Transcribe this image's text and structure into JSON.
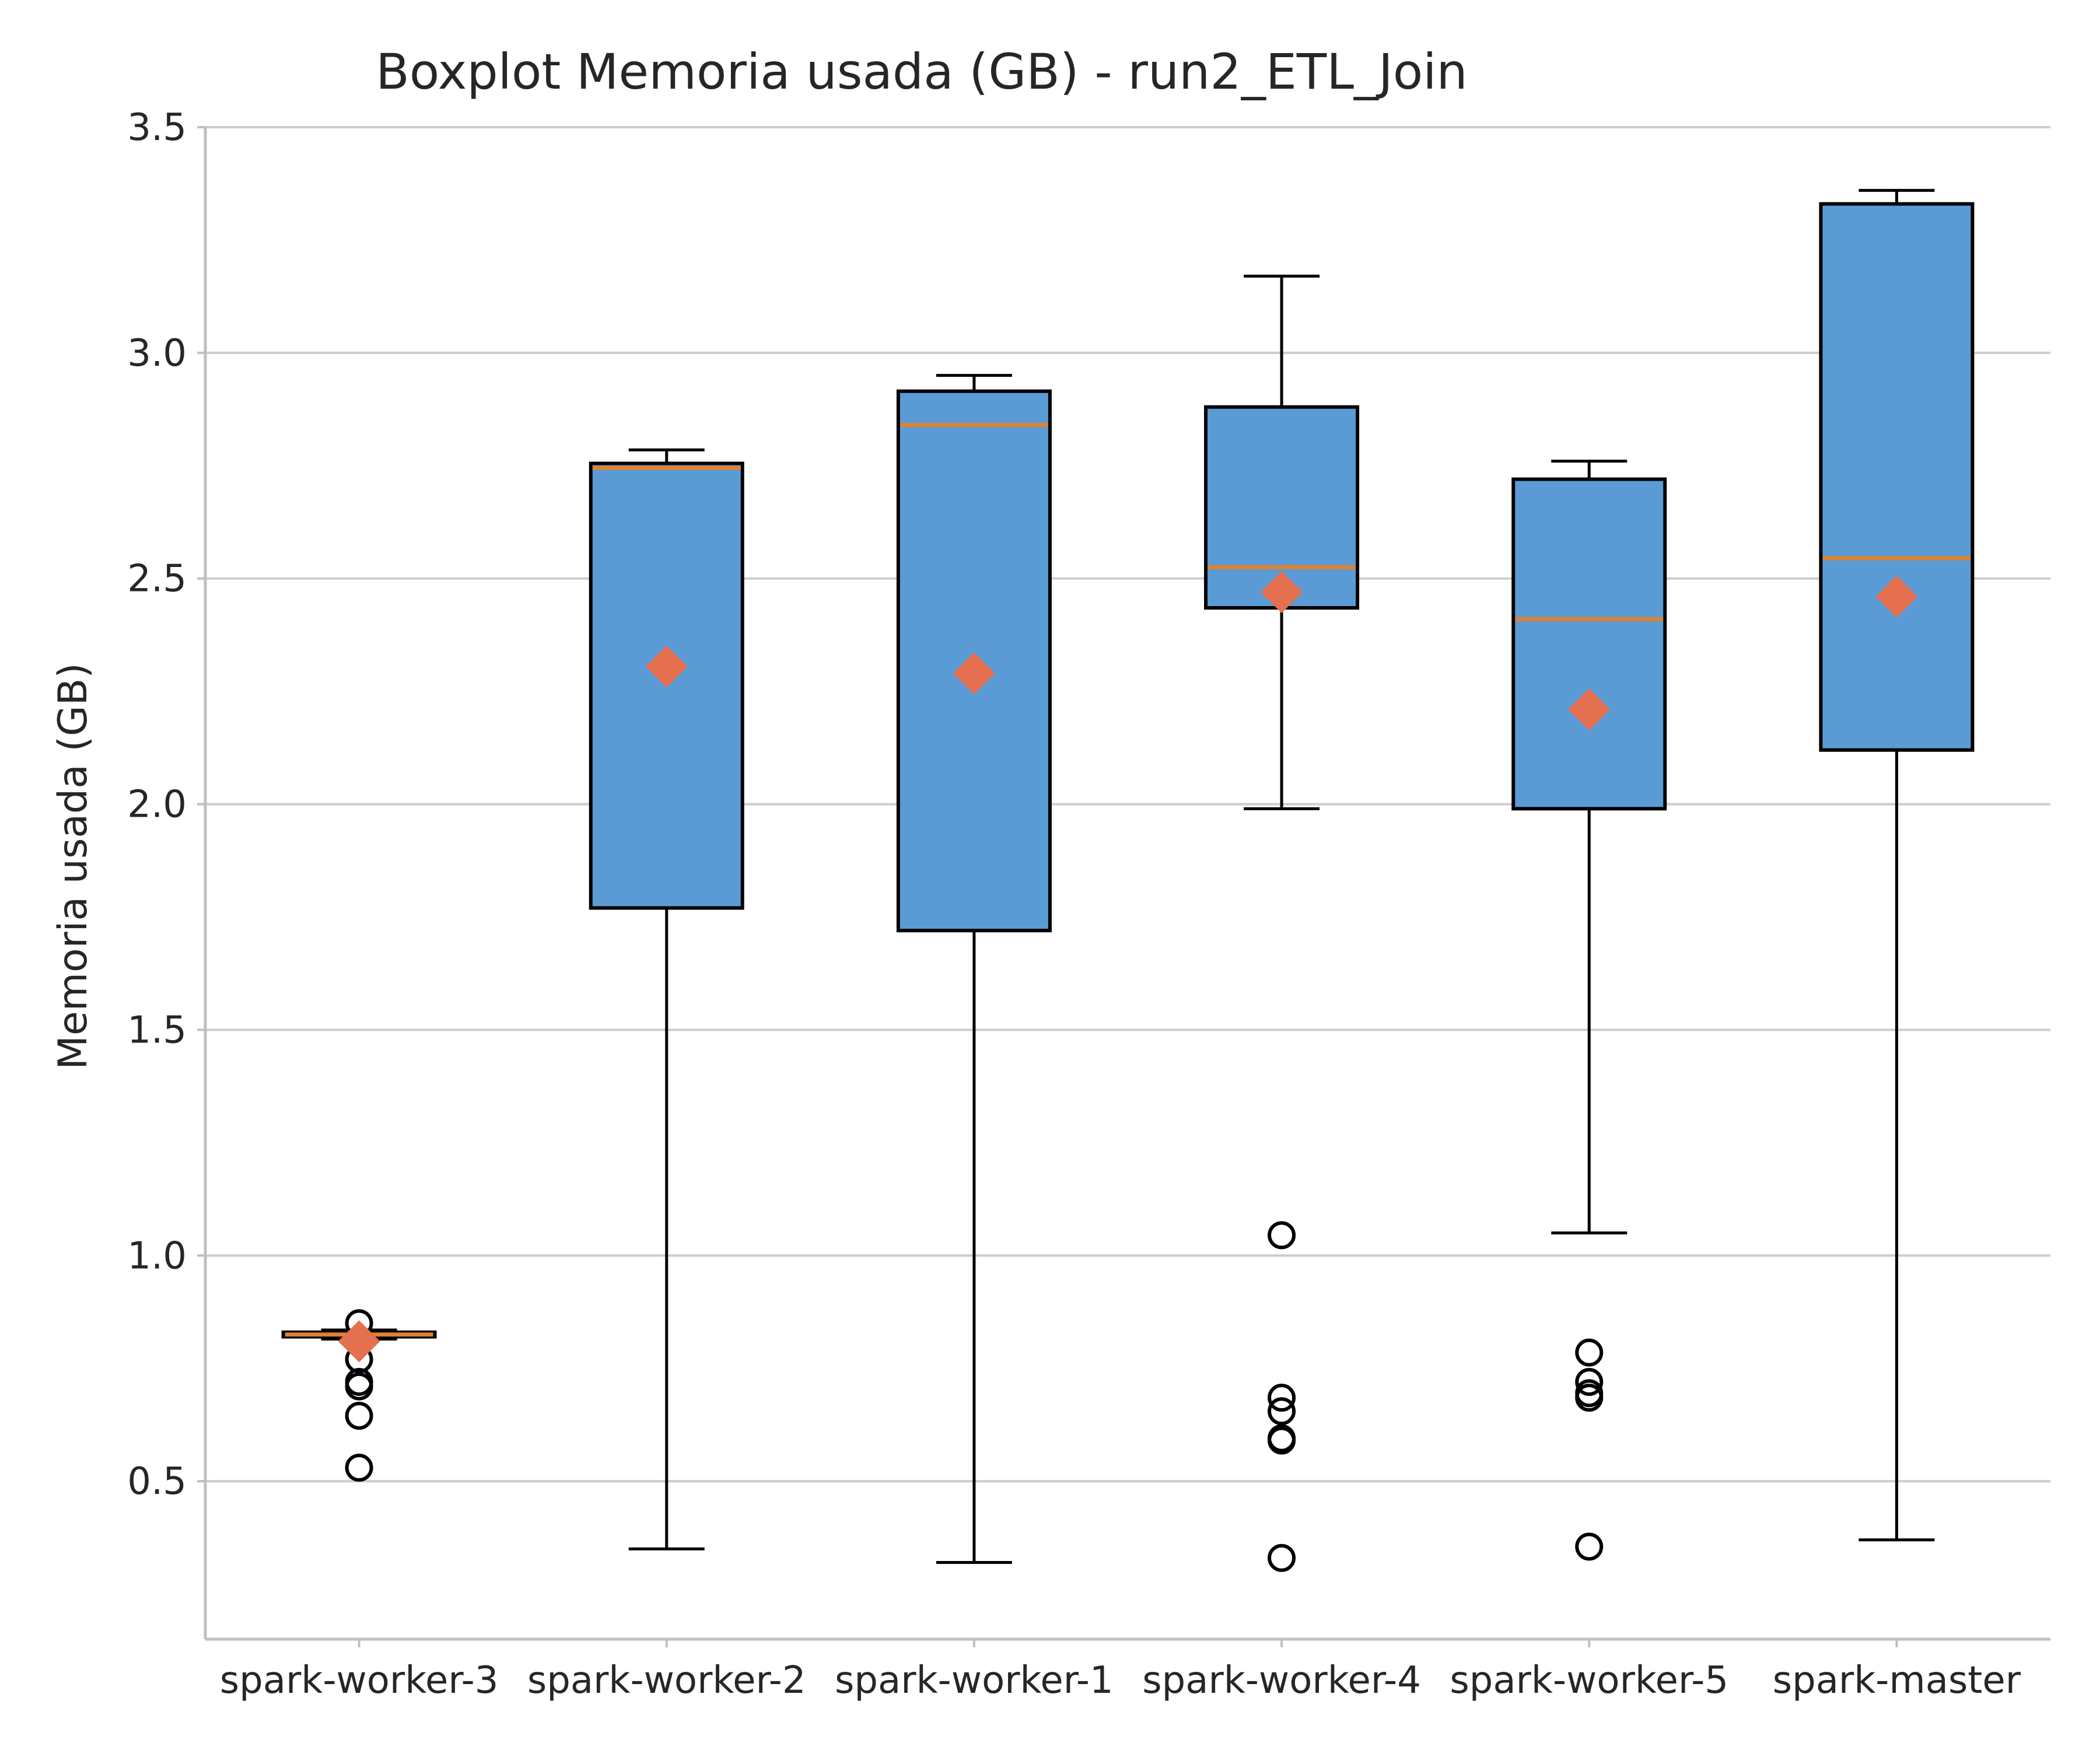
{
  "chart_data": {
    "type": "boxplot",
    "title": "Boxplot Memoria usada (GB) - run2_ETL_Join",
    "xlabel": "",
    "ylabel": "Memoria usada (GB)",
    "ylim": [
      0.15,
      3.5
    ],
    "yticks": [
      0.5,
      1.0,
      1.5,
      2.0,
      2.5,
      3.0,
      3.5
    ],
    "ytick_labels": [
      "0.5",
      "1.0",
      "1.5",
      "2.0",
      "2.5",
      "3.0",
      "3.5"
    ],
    "grid": "horizontal",
    "categories": [
      "spark-worker-3",
      "spark-worker-2",
      "spark-worker-1",
      "spark-worker-4",
      "spark-worker-5",
      "spark-master"
    ],
    "boxes": [
      {
        "whisker_low": 0.815,
        "q1": 0.82,
        "median": 0.825,
        "q3": 0.83,
        "whisker_high": 0.835,
        "mean": 0.81,
        "outliers": [
          0.85,
          0.77,
          0.72,
          0.71,
          0.645,
          0.53
        ]
      },
      {
        "whisker_low": 0.35,
        "q1": 1.77,
        "median": 2.745,
        "q3": 2.755,
        "whisker_high": 2.785,
        "mean": 2.305,
        "outliers": []
      },
      {
        "whisker_low": 0.32,
        "q1": 1.72,
        "median": 2.84,
        "q3": 2.915,
        "whisker_high": 2.95,
        "mean": 2.29,
        "outliers": []
      },
      {
        "whisker_low": 1.99,
        "q1": 2.435,
        "median": 2.525,
        "q3": 2.88,
        "whisker_high": 3.17,
        "mean": 2.47,
        "outliers": [
          1.045,
          0.685,
          0.655,
          0.595,
          0.59,
          0.33
        ]
      },
      {
        "whisker_low": 1.05,
        "q1": 1.99,
        "median": 2.41,
        "q3": 2.72,
        "whisker_high": 2.76,
        "mean": 2.21,
        "outliers": [
          0.785,
          0.72,
          0.695,
          0.685,
          0.355
        ]
      },
      {
        "whisker_low": 0.37,
        "q1": 2.12,
        "median": 2.545,
        "q3": 3.33,
        "whisker_high": 3.36,
        "mean": 2.46,
        "outliers": []
      }
    ],
    "colors": {
      "box_fill": "#5b9bd5",
      "box_edge": "#000000",
      "median": "#e0822f",
      "mean_marker": "#e4704f",
      "grid": "#cccccc",
      "axis": "#bfbfbf",
      "text": "#262626"
    }
  }
}
